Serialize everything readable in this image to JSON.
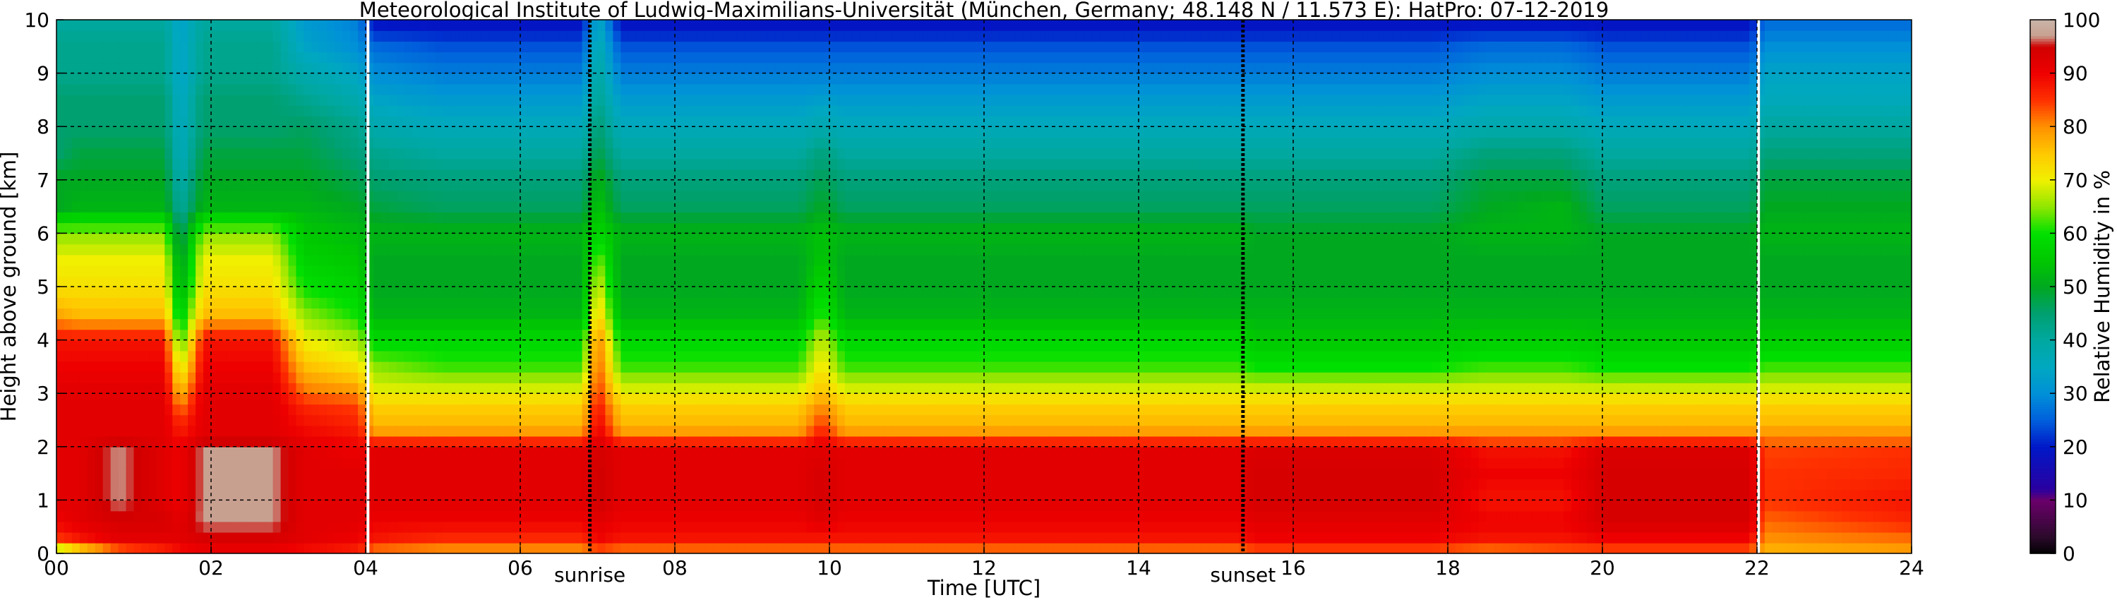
{
  "chart_data": {
    "type": "heatmap",
    "title": "Meteorological Institute of Ludwig-Maximilians-Universität (München, Germany; 48.148 N / 11.573 E):    HatPro: 07-12-2019",
    "xlabel": "Time [UTC]",
    "ylabel": "Height above ground [km]",
    "colorbar_label": "Relative Humidity in %",
    "xlim": [
      0,
      24
    ],
    "ylim": [
      0,
      10
    ],
    "x_ticks": [
      0,
      2,
      4,
      6,
      8,
      10,
      12,
      14,
      16,
      18,
      20,
      22,
      24
    ],
    "x_tick_labels": [
      "00",
      "02",
      "04",
      "06",
      "08",
      "10",
      "12",
      "14",
      "16",
      "18",
      "20",
      "22",
      "24"
    ],
    "y_ticks": [
      0,
      1,
      2,
      3,
      4,
      5,
      6,
      7,
      8,
      9,
      10
    ],
    "y_tick_labels": [
      "0",
      "1",
      "2",
      "3",
      "4",
      "5",
      "6",
      "7",
      "8",
      "9",
      "10"
    ],
    "colorbar_ticks": [
      0,
      10,
      20,
      30,
      40,
      50,
      60,
      70,
      80,
      90,
      100
    ],
    "colorbar_tick_labels": [
      "0",
      "10",
      "20",
      "30",
      "40",
      "50",
      "60",
      "70",
      "80",
      "90",
      "100"
    ],
    "grid": true,
    "annotations": [
      {
        "text": "sunrise",
        "x": 6.9
      },
      {
        "text": "sunset",
        "x": 15.35
      }
    ],
    "vertical_lines": [
      {
        "x": 4.03,
        "color": "#ffffff"
      },
      {
        "x": 6.9,
        "color": "#000000"
      },
      {
        "x": 15.35,
        "color": "#000000"
      },
      {
        "x": 22.02,
        "color": "#ffffff"
      }
    ],
    "colormap": [
      {
        "v": 0,
        "c": "#000000"
      },
      {
        "v": 3,
        "c": "#2a0a2a"
      },
      {
        "v": 10,
        "c": "#6b006b"
      },
      {
        "v": 12,
        "c": "#2a00a0"
      },
      {
        "v": 20,
        "c": "#0018c8"
      },
      {
        "v": 25,
        "c": "#0060dc"
      },
      {
        "v": 30,
        "c": "#0090d8"
      },
      {
        "v": 35,
        "c": "#00a8c0"
      },
      {
        "v": 40,
        "c": "#00a8a0"
      },
      {
        "v": 45,
        "c": "#00a070"
      },
      {
        "v": 50,
        "c": "#00a820"
      },
      {
        "v": 55,
        "c": "#00c800"
      },
      {
        "v": 60,
        "c": "#00e000"
      },
      {
        "v": 65,
        "c": "#90e600"
      },
      {
        "v": 70,
        "c": "#f0f000"
      },
      {
        "v": 75,
        "c": "#ffc800"
      },
      {
        "v": 80,
        "c": "#ff9000"
      },
      {
        "v": 85,
        "c": "#ff3000"
      },
      {
        "v": 90,
        "c": "#ee0000"
      },
      {
        "v": 95,
        "c": "#d00000"
      },
      {
        "v": 97,
        "c": "#c8a090"
      },
      {
        "v": 100,
        "c": "#c8b4a8"
      }
    ],
    "profile_heights_km": [
      0,
      0.3,
      0.6,
      1.0,
      1.5,
      2.0,
      2.2,
      2.5,
      2.8,
      3.0,
      3.5,
      4.0,
      4.5,
      5.0,
      5.5,
      6.0,
      6.5,
      7.0,
      7.5,
      8.0,
      8.5,
      9.0,
      9.5,
      10.0
    ],
    "profiles": [
      {
        "t": 0.0,
        "rh": [
          60,
          85,
          90,
          92,
          92,
          92,
          92,
          92,
          92,
          92,
          90,
          88,
          78,
          72,
          70,
          65,
          50,
          50,
          45,
          45,
          45,
          42,
          42,
          40
        ]
      },
      {
        "t": 0.3,
        "rh": [
          70,
          88,
          92,
          92,
          92,
          92,
          92,
          92,
          92,
          92,
          90,
          88,
          76,
          72,
          70,
          65,
          52,
          50,
          48,
          45,
          45,
          42,
          42,
          40
        ]
      },
      {
        "t": 0.8,
        "rh": [
          80,
          92,
          94,
          97,
          97,
          97,
          92,
          92,
          92,
          92,
          90,
          88,
          76,
          72,
          70,
          65,
          52,
          50,
          48,
          45,
          45,
          42,
          42,
          40
        ]
      },
      {
        "t": 1.4,
        "rh": [
          85,
          92,
          94,
          92,
          92,
          92,
          92,
          92,
          92,
          92,
          90,
          88,
          76,
          72,
          70,
          65,
          52,
          50,
          48,
          45,
          45,
          42,
          42,
          40
        ]
      },
      {
        "t": 1.6,
        "rh": [
          88,
          92,
          92,
          90,
          90,
          90,
          88,
          85,
          80,
          76,
          68,
          60,
          55,
          50,
          48,
          45,
          40,
          38,
          35,
          35,
          34,
          33,
          33,
          33
        ]
      },
      {
        "t": 1.9,
        "rh": [
          90,
          94,
          97,
          97,
          97,
          97,
          92,
          92,
          92,
          92,
          90,
          88,
          76,
          72,
          70,
          65,
          52,
          50,
          48,
          45,
          45,
          42,
          42,
          40
        ]
      },
      {
        "t": 2.8,
        "rh": [
          90,
          94,
          97,
          97,
          97,
          97,
          92,
          92,
          92,
          92,
          90,
          88,
          76,
          72,
          70,
          65,
          52,
          50,
          48,
          45,
          45,
          42,
          42,
          40
        ]
      },
      {
        "t": 3.2,
        "rh": [
          88,
          92,
          92,
          92,
          92,
          92,
          90,
          88,
          86,
          82,
          76,
          70,
          65,
          60,
          57,
          55,
          52,
          50,
          48,
          46,
          42,
          38,
          34,
          32
        ]
      },
      {
        "t": 3.9,
        "rh": [
          86,
          90,
          92,
          92,
          92,
          90,
          88,
          86,
          84,
          80,
          72,
          66,
          60,
          57,
          55,
          53,
          50,
          47,
          44,
          42,
          38,
          34,
          30,
          28
        ]
      },
      {
        "t": 4.1,
        "rh": [
          80,
          88,
          90,
          92,
          92,
          92,
          80,
          76,
          74,
          70,
          65,
          58,
          52,
          50,
          50,
          52,
          48,
          45,
          42,
          38,
          34,
          30,
          26,
          18
        ]
      },
      {
        "t": 5.0,
        "rh": [
          78,
          86,
          90,
          92,
          92,
          92,
          80,
          76,
          74,
          70,
          62,
          58,
          52,
          50,
          50,
          52,
          46,
          44,
          40,
          36,
          32,
          28,
          24,
          18
        ]
      },
      {
        "t": 6.8,
        "rh": [
          78,
          86,
          90,
          92,
          92,
          92,
          80,
          76,
          74,
          70,
          62,
          58,
          52,
          50,
          50,
          52,
          46,
          44,
          40,
          36,
          32,
          28,
          24,
          18
        ]
      },
      {
        "t": 7.0,
        "rh": [
          82,
          90,
          92,
          95,
          95,
          94,
          92,
          90,
          88,
          86,
          84,
          82,
          75,
          70,
          65,
          58,
          55,
          52,
          48,
          45,
          42,
          40,
          38,
          36
        ]
      },
      {
        "t": 7.3,
        "rh": [
          80,
          88,
          90,
          92,
          92,
          92,
          80,
          76,
          74,
          70,
          62,
          58,
          52,
          50,
          50,
          52,
          46,
          44,
          40,
          36,
          32,
          28,
          24,
          18
        ]
      },
      {
        "t": 9.6,
        "rh": [
          80,
          88,
          90,
          92,
          92,
          92,
          80,
          76,
          74,
          70,
          62,
          58,
          52,
          50,
          50,
          52,
          46,
          44,
          40,
          36,
          32,
          28,
          24,
          18
        ]
      },
      {
        "t": 9.9,
        "rh": [
          80,
          88,
          92,
          94,
          94,
          92,
          88,
          84,
          80,
          76,
          72,
          68,
          62,
          58,
          55,
          54,
          50,
          47,
          44,
          38,
          33,
          28,
          24,
          18
        ]
      },
      {
        "t": 10.2,
        "rh": [
          80,
          88,
          90,
          92,
          92,
          92,
          80,
          76,
          74,
          70,
          62,
          58,
          52,
          50,
          50,
          52,
          46,
          44,
          40,
          36,
          32,
          28,
          24,
          18
        ]
      },
      {
        "t": 15.3,
        "rh": [
          80,
          88,
          90,
          92,
          92,
          92,
          80,
          76,
          74,
          70,
          62,
          58,
          52,
          50,
          50,
          52,
          46,
          44,
          40,
          36,
          32,
          28,
          24,
          18
        ]
      },
      {
        "t": 15.5,
        "rh": [
          82,
          90,
          92,
          94,
          94,
          93,
          80,
          76,
          74,
          70,
          60,
          55,
          52,
          50,
          50,
          50,
          46,
          44,
          40,
          36,
          32,
          28,
          24,
          18
        ]
      },
      {
        "t": 17.8,
        "rh": [
          82,
          90,
          92,
          94,
          94,
          93,
          80,
          76,
          74,
          70,
          60,
          55,
          52,
          50,
          50,
          50,
          46,
          44,
          40,
          36,
          32,
          28,
          24,
          18
        ]
      },
      {
        "t": 18.5,
        "rh": [
          80,
          88,
          90,
          88,
          90,
          88,
          80,
          76,
          74,
          70,
          62,
          56,
          52,
          50,
          50,
          52,
          50,
          48,
          44,
          38,
          34,
          30,
          26,
          18
        ]
      },
      {
        "t": 19.5,
        "rh": [
          82,
          88,
          90,
          88,
          90,
          88,
          80,
          76,
          74,
          70,
          62,
          56,
          52,
          50,
          50,
          52,
          52,
          48,
          44,
          38,
          34,
          30,
          26,
          18
        ]
      },
      {
        "t": 20.0,
        "rh": [
          82,
          90,
          94,
          94,
          94,
          93,
          80,
          76,
          74,
          70,
          60,
          55,
          52,
          50,
          50,
          50,
          46,
          44,
          40,
          36,
          32,
          28,
          24,
          18
        ]
      },
      {
        "t": 21.9,
        "rh": [
          82,
          90,
          94,
          94,
          94,
          93,
          80,
          76,
          74,
          70,
          60,
          55,
          52,
          50,
          50,
          50,
          46,
          44,
          40,
          36,
          32,
          28,
          24,
          18
        ]
      },
      {
        "t": 22.1,
        "rh": [
          76,
          80,
          82,
          85,
          85,
          84,
          80,
          76,
          74,
          70,
          62,
          56,
          52,
          50,
          50,
          52,
          50,
          48,
          44,
          40,
          36,
          34,
          30,
          26
        ]
      },
      {
        "t": 24.0,
        "rh": [
          78,
          82,
          86,
          88,
          86,
          85,
          80,
          76,
          74,
          70,
          62,
          56,
          52,
          50,
          50,
          52,
          50,
          48,
          44,
          40,
          36,
          34,
          30,
          26
        ]
      }
    ]
  }
}
